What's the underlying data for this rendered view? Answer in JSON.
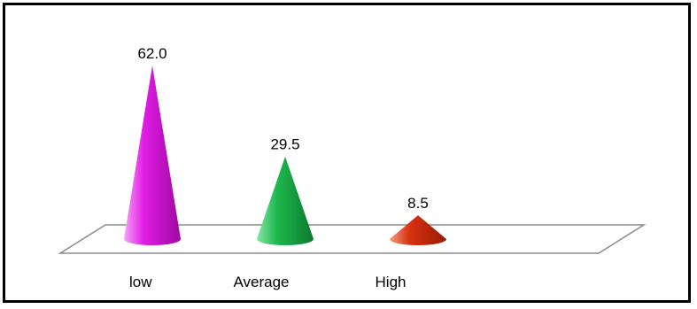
{
  "chart_data": {
    "type": "bar",
    "style": "3d-cone",
    "categories": [
      "low",
      "Average",
      "High"
    ],
    "values": [
      62.0,
      29.5,
      8.5
    ],
    "value_labels": [
      "62.0",
      "29.5",
      "8.5"
    ],
    "colors": [
      "#e21ce6",
      "#1fb84f",
      "#d8310f"
    ],
    "ylim": [
      0,
      62
    ],
    "grid": false,
    "legend": "none",
    "title": "",
    "xlabel": "",
    "ylabel": ""
  }
}
